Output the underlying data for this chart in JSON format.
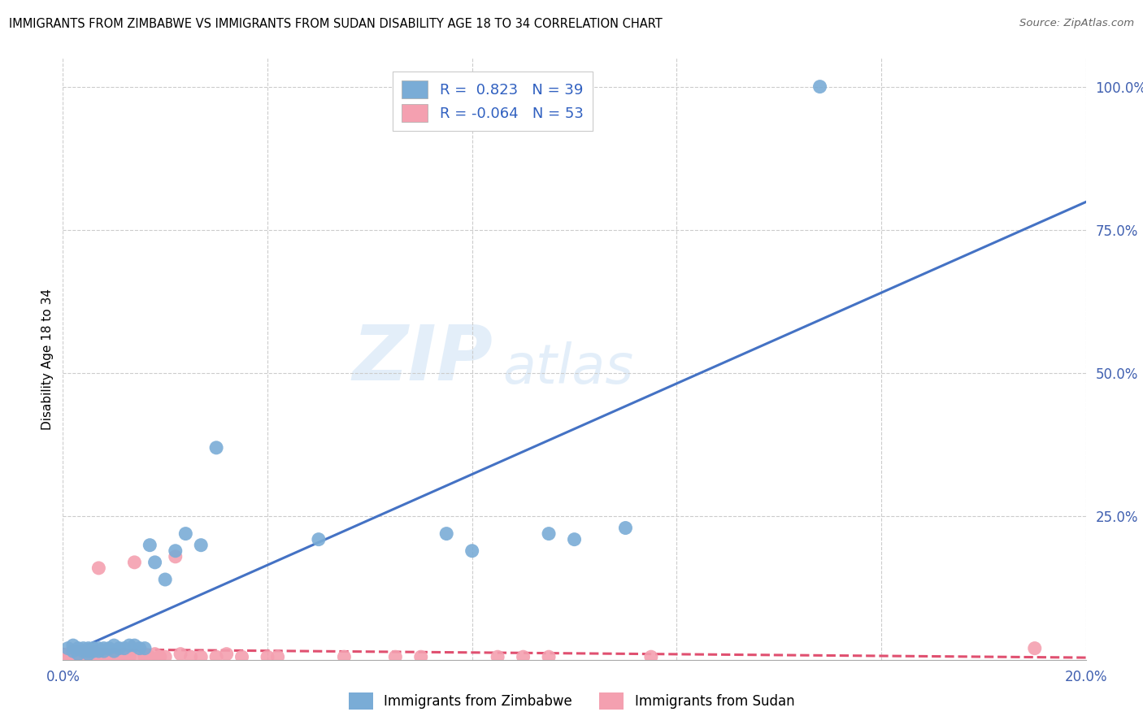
{
  "title": "IMMIGRANTS FROM ZIMBABWE VS IMMIGRANTS FROM SUDAN DISABILITY AGE 18 TO 34 CORRELATION CHART",
  "source": "Source: ZipAtlas.com",
  "ylabel_label": "Disability Age 18 to 34",
  "xlim": [
    0.0,
    0.2
  ],
  "ylim": [
    0.0,
    1.05
  ],
  "xticks": [
    0.0,
    0.04,
    0.08,
    0.12,
    0.16,
    0.2
  ],
  "xticklabels": [
    "0.0%",
    "",
    "",
    "",
    "",
    "20.0%"
  ],
  "ytick_positions": [
    0.25,
    0.5,
    0.75,
    1.0
  ],
  "yticklabels": [
    "25.0%",
    "50.0%",
    "75.0%",
    "100.0%"
  ],
  "zimbabwe_color": "#7aacd6",
  "sudan_color": "#f4a0b0",
  "zimbabwe_line_color": "#4472c4",
  "sudan_line_color": "#e05070",
  "R_zimbabwe": 0.823,
  "N_zimbabwe": 39,
  "R_sudan": -0.064,
  "N_sudan": 53,
  "watermark_zip": "ZIP",
  "watermark_atlas": "atlas",
  "zimbabwe_x": [
    0.001,
    0.002,
    0.002,
    0.003,
    0.003,
    0.004,
    0.004,
    0.005,
    0.005,
    0.005,
    0.006,
    0.006,
    0.007,
    0.007,
    0.008,
    0.008,
    0.009,
    0.01,
    0.01,
    0.011,
    0.012,
    0.013,
    0.014,
    0.015,
    0.016,
    0.017,
    0.018,
    0.02,
    0.022,
    0.024,
    0.027,
    0.03,
    0.05,
    0.075,
    0.08,
    0.095,
    0.1,
    0.11,
    0.148
  ],
  "zimbabwe_y": [
    0.02,
    0.015,
    0.025,
    0.01,
    0.02,
    0.015,
    0.02,
    0.01,
    0.02,
    0.015,
    0.015,
    0.02,
    0.015,
    0.02,
    0.015,
    0.02,
    0.02,
    0.015,
    0.025,
    0.02,
    0.02,
    0.025,
    0.025,
    0.02,
    0.02,
    0.2,
    0.17,
    0.14,
    0.19,
    0.22,
    0.2,
    0.37,
    0.21,
    0.22,
    0.19,
    0.22,
    0.21,
    0.23,
    1.0
  ],
  "sudan_x": [
    0.001,
    0.001,
    0.002,
    0.002,
    0.002,
    0.003,
    0.003,
    0.003,
    0.004,
    0.004,
    0.004,
    0.005,
    0.005,
    0.005,
    0.006,
    0.006,
    0.006,
    0.007,
    0.007,
    0.008,
    0.008,
    0.009,
    0.01,
    0.01,
    0.011,
    0.012,
    0.013,
    0.013,
    0.014,
    0.015,
    0.016,
    0.016,
    0.017,
    0.018,
    0.019,
    0.02,
    0.022,
    0.023,
    0.025,
    0.027,
    0.03,
    0.032,
    0.035,
    0.04,
    0.042,
    0.055,
    0.065,
    0.07,
    0.085,
    0.09,
    0.095,
    0.115,
    0.19
  ],
  "sudan_y": [
    0.005,
    0.01,
    0.005,
    0.01,
    0.015,
    0.005,
    0.01,
    0.015,
    0.005,
    0.01,
    0.015,
    0.005,
    0.01,
    0.005,
    0.01,
    0.005,
    0.015,
    0.16,
    0.01,
    0.005,
    0.01,
    0.005,
    0.01,
    0.005,
    0.005,
    0.01,
    0.005,
    0.005,
    0.17,
    0.005,
    0.01,
    0.005,
    0.005,
    0.01,
    0.005,
    0.005,
    0.18,
    0.01,
    0.005,
    0.005,
    0.005,
    0.01,
    0.005,
    0.005,
    0.005,
    0.005,
    0.005,
    0.005,
    0.005,
    0.005,
    0.005,
    0.005,
    0.02
  ]
}
